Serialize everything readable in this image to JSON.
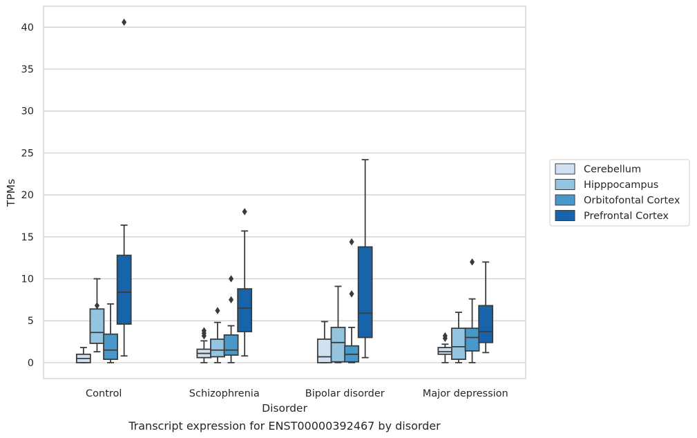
{
  "chart_data": {
    "type": "box",
    "xlabel": "Disorder",
    "ylabel": "TPMs",
    "caption": "Transcript expression for ENST00000392467 by disorder",
    "ylim": [
      -1.9,
      42.5
    ],
    "yticks": [
      "0",
      "5",
      "10",
      "15",
      "20",
      "25",
      "30",
      "35",
      "40"
    ],
    "grid": true,
    "legend_position": "right",
    "categories": [
      "Control",
      "Schizophrenia",
      "Bipolar disorder",
      "Major depression"
    ],
    "series": [
      {
        "name": "Cerebellum",
        "color": "#d0e1f2",
        "boxes": [
          {
            "whisker_low": 0.0,
            "q1": 0.0,
            "median": 0.5,
            "q3": 1.0,
            "whisker_high": 1.8,
            "outliers": []
          },
          {
            "whisker_low": 0.0,
            "q1": 0.6,
            "median": 1.1,
            "q3": 1.6,
            "whisker_high": 2.6,
            "outliers": [
              3.2,
              3.5,
              3.8
            ]
          },
          {
            "whisker_low": 0.0,
            "q1": 0.0,
            "median": 0.7,
            "q3": 2.8,
            "whisker_high": 4.9,
            "outliers": []
          },
          {
            "whisker_low": 0.0,
            "q1": 1.0,
            "median": 1.3,
            "q3": 1.8,
            "whisker_high": 2.2,
            "outliers": [
              2.9,
              3.2
            ]
          }
        ]
      },
      {
        "name": "Hipppocampus",
        "color": "#94c4df",
        "boxes": [
          {
            "whisker_low": 1.3,
            "q1": 2.3,
            "median": 3.6,
            "q3": 6.4,
            "whisker_high": 10.0,
            "outliers": [
              6.8
            ]
          },
          {
            "whisker_low": 0.0,
            "q1": 0.7,
            "median": 1.5,
            "q3": 2.8,
            "whisker_high": 4.8,
            "outliers": [
              6.2
            ]
          },
          {
            "whisker_low": 0.0,
            "q1": 0.1,
            "median": 2.4,
            "q3": 4.2,
            "whisker_high": 9.1,
            "outliers": []
          },
          {
            "whisker_low": 0.0,
            "q1": 0.4,
            "median": 1.9,
            "q3": 4.1,
            "whisker_high": 6.0,
            "outliers": []
          }
        ]
      },
      {
        "name": "Orbitofontal Cortex",
        "color": "#4a98c9",
        "boxes": [
          {
            "whisker_low": 0.0,
            "q1": 0.4,
            "median": 1.5,
            "q3": 3.4,
            "whisker_high": 7.0,
            "outliers": []
          },
          {
            "whisker_low": 0.0,
            "q1": 0.9,
            "median": 1.5,
            "q3": 3.3,
            "whisker_high": 4.4,
            "outliers": [
              7.5,
              10.0
            ]
          },
          {
            "whisker_low": 0.0,
            "q1": 0.1,
            "median": 1.0,
            "q3": 2.0,
            "whisker_high": 4.2,
            "outliers": [
              8.2,
              14.4
            ]
          },
          {
            "whisker_low": 0.0,
            "q1": 1.4,
            "median": 3.0,
            "q3": 4.1,
            "whisker_high": 7.6,
            "outliers": [
              12.0
            ]
          }
        ]
      },
      {
        "name": "Prefrontal Cortex",
        "color": "#1764ab",
        "boxes": [
          {
            "whisker_low": 0.8,
            "q1": 4.6,
            "median": 8.4,
            "q3": 12.8,
            "whisker_high": 16.4,
            "outliers": [
              40.6
            ]
          },
          {
            "whisker_low": 0.8,
            "q1": 3.7,
            "median": 6.5,
            "q3": 8.8,
            "whisker_high": 15.7,
            "outliers": [
              18.0
            ]
          },
          {
            "whisker_low": 0.6,
            "q1": 3.0,
            "median": 5.9,
            "q3": 13.8,
            "whisker_high": 24.2,
            "outliers": []
          },
          {
            "whisker_low": 1.2,
            "q1": 2.4,
            "median": 3.7,
            "q3": 6.8,
            "whisker_high": 12.0,
            "outliers": []
          }
        ]
      }
    ]
  }
}
